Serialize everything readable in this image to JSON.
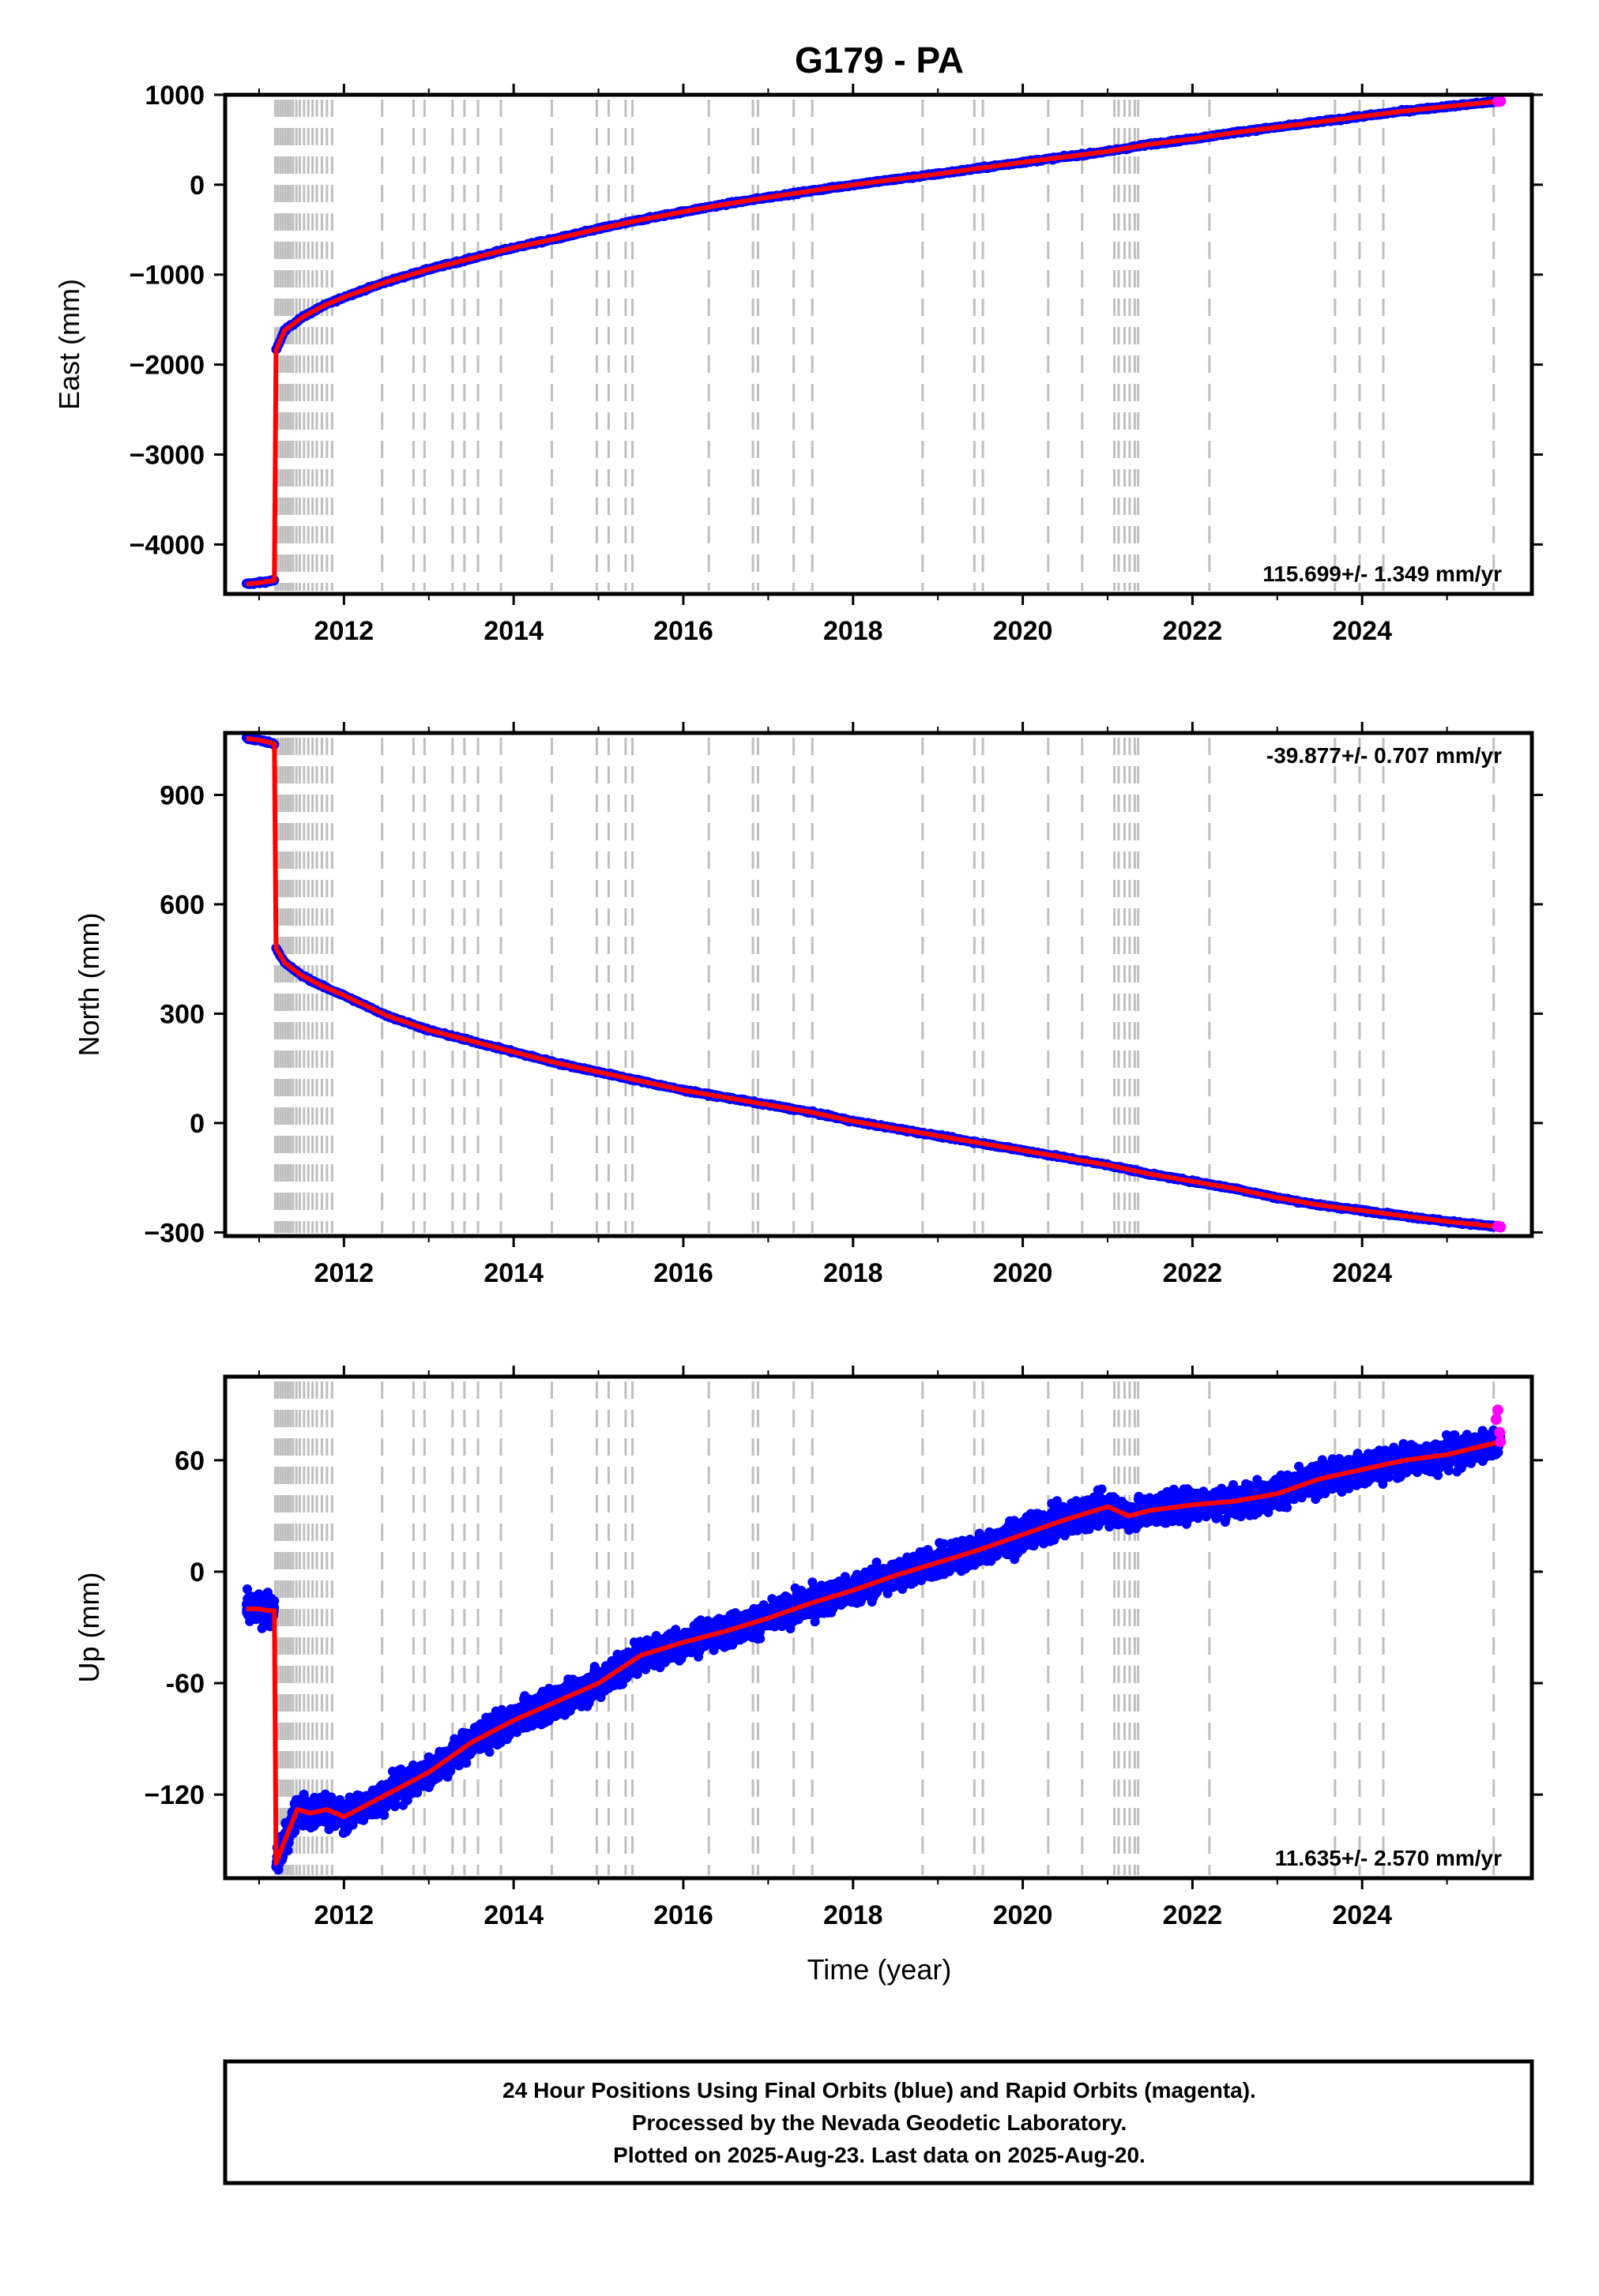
{
  "title": "G179 - PA",
  "xlabel": "Time (year)",
  "footer": [
    "24 Hour Positions Using Final Orbits (blue) and Rapid Orbits (magenta).",
    "Processed by the Nevada Geodetic Laboratory.",
    "Plotted on 2025-Aug-23. Last data on 2025-Aug-20."
  ],
  "colors": {
    "final_orbits": "#0000ff",
    "rapid_orbits": "#ff00ff",
    "model": "#ff0000",
    "event_lines": "#bfbfbf"
  },
  "chart_data": [
    {
      "type": "scatter",
      "ylabel": "East (mm)",
      "xlim": [
        2010.6,
        2026.0
      ],
      "ylim": [
        -4550,
        1000
      ],
      "xticks": [
        "2012",
        "2014",
        "2016",
        "2018",
        "2020",
        "2022",
        "2024"
      ],
      "yticks": [
        "1000",
        "0",
        "−1000",
        "−2000",
        "−3000",
        "−4000"
      ],
      "ytick_values": [
        1000,
        0,
        -1000,
        -2000,
        -3000,
        -4000
      ],
      "rate_label": "115.699+/- 1.349 mm/yr",
      "rate_position": "bottom-right",
      "offset_epoch": 2011.19,
      "series": [
        {
          "x": [
            2010.85,
            2011.0,
            2011.1,
            2011.18
          ],
          "y": [
            -4440,
            -4425,
            -4410,
            -4400
          ]
        },
        {
          "x": [
            2011.2,
            2011.3,
            2011.5,
            2011.75,
            2012.0,
            2012.5,
            2013.0,
            2013.5,
            2014.0,
            2014.5,
            2015.0,
            2015.5,
            2016.0,
            2016.5,
            2017.0,
            2017.5,
            2018.0,
            2018.5,
            2019.0,
            2019.5,
            2020.0,
            2020.5,
            2021.0,
            2021.5,
            2022.0,
            2022.5,
            2023.0,
            2023.5,
            2024.0,
            2024.5,
            2025.0,
            2025.63
          ],
          "y": [
            -1840,
            -1620,
            -1480,
            -1350,
            -1250,
            -1080,
            -940,
            -820,
            -700,
            -600,
            -490,
            -390,
            -300,
            -215,
            -140,
            -70,
            0,
            60,
            120,
            185,
            250,
            310,
            370,
            450,
            510,
            580,
            640,
            700,
            760,
            820,
            870,
            930
          ]
        }
      ],
      "rapid": {
        "x": [
          2025.6,
          2025.63
        ],
        "y": [
          925,
          930
        ]
      }
    },
    {
      "type": "scatter",
      "ylabel": "North (mm)",
      "xlim": [
        2010.6,
        2026.0
      ],
      "ylim": [
        -310,
        1070
      ],
      "xticks": [
        "2012",
        "2014",
        "2016",
        "2018",
        "2020",
        "2022",
        "2024"
      ],
      "yticks": [
        "900",
        "600",
        "300",
        "0",
        "−300"
      ],
      "ytick_values": [
        900,
        600,
        300,
        0,
        -300
      ],
      "rate_label": "-39.877+/- 0.707 mm/yr",
      "rate_position": "top-right",
      "offset_epoch": 2011.19,
      "series": [
        {
          "x": [
            2010.85,
            2011.0,
            2011.1,
            2011.18
          ],
          "y": [
            1055,
            1050,
            1045,
            1040
          ]
        },
        {
          "x": [
            2011.2,
            2011.3,
            2011.5,
            2011.75,
            2012.0,
            2012.5,
            2013.0,
            2013.5,
            2014.0,
            2014.5,
            2015.0,
            2015.5,
            2016.0,
            2016.5,
            2017.0,
            2017.5,
            2018.0,
            2018.5,
            2019.0,
            2019.5,
            2020.0,
            2020.5,
            2021.0,
            2021.5,
            2022.0,
            2022.5,
            2023.0,
            2023.5,
            2024.0,
            2024.5,
            2025.0,
            2025.63
          ],
          "y": [
            480,
            440,
            405,
            375,
            350,
            295,
            255,
            225,
            195,
            165,
            140,
            115,
            90,
            70,
            50,
            30,
            5,
            -15,
            -35,
            -55,
            -75,
            -95,
            -115,
            -140,
            -160,
            -180,
            -205,
            -225,
            -240,
            -255,
            -270,
            -285
          ]
        }
      ],
      "rapid": {
        "x": [
          2025.6,
          2025.63
        ],
        "y": [
          -283,
          -285
        ]
      }
    },
    {
      "type": "scatter",
      "ylabel": "Up (mm)",
      "xlim": [
        2010.6,
        2026.0
      ],
      "ylim": [
        -165,
        105
      ],
      "xticks": [
        "2012",
        "2014",
        "2016",
        "2018",
        "2020",
        "2022",
        "2024"
      ],
      "yticks": [
        "60",
        "0",
        "-60",
        "−120"
      ],
      "ytick_values": [
        60,
        0,
        -60,
        -120
      ],
      "rate_label": "11.635+/- 2.570 mm/yr",
      "rate_position": "bottom-right",
      "offset_epoch": 2011.19,
      "series": [
        {
          "x": [
            2010.85,
            2011.0,
            2011.1,
            2011.18
          ],
          "y": [
            -20,
            -20,
            -21,
            -21
          ]
        },
        {
          "x": [
            2011.2,
            2011.3,
            2011.45,
            2011.6,
            2011.8,
            2012.0,
            2012.5,
            2013.0,
            2013.5,
            2014.0,
            2014.5,
            2015.0,
            2015.5,
            2016.0,
            2016.5,
            2017.0,
            2017.5,
            2018.0,
            2018.5,
            2019.0,
            2019.5,
            2020.0,
            2020.5,
            2021.0,
            2021.25,
            2021.5,
            2022.0,
            2022.5,
            2023.0,
            2023.5,
            2024.0,
            2024.5,
            2025.0,
            2025.63
          ],
          "y": [
            -157,
            -145,
            -128,
            -130,
            -128,
            -132,
            -120,
            -108,
            -92,
            -80,
            -70,
            -60,
            -45,
            -38,
            -32,
            -25,
            -17,
            -10,
            -2,
            5,
            12,
            20,
            28,
            35,
            30,
            33,
            36,
            38,
            42,
            50,
            55,
            60,
            63,
            70
          ]
        }
      ],
      "rapid": {
        "x": [
          2025.58,
          2025.6,
          2025.62,
          2025.63
        ],
        "y": [
          82,
          87,
          75,
          70
        ]
      }
    }
  ]
}
